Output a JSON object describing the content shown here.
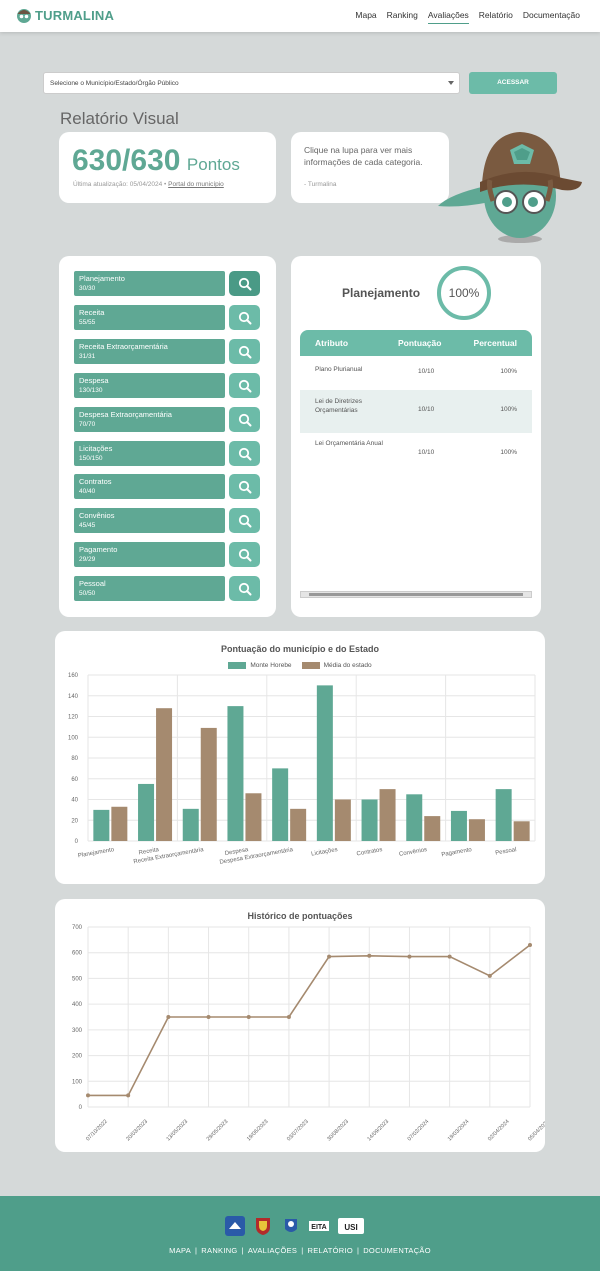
{
  "brand": {
    "name": "TURMALINA"
  },
  "nav": {
    "items": [
      "Mapa",
      "Ranking",
      "Avaliações",
      "Relatório",
      "Documentação"
    ],
    "active": "Avaliações"
  },
  "search": {
    "placeholder": "Selecione o Município/Estado/Órgão Público",
    "button": "ACESSAR"
  },
  "page": {
    "title": "Relatório Visual"
  },
  "score": {
    "value": "630/630",
    "unit": "Pontos",
    "last_update": "Última atualização: 05/04/2024 •",
    "portal_link": "Portal do município"
  },
  "tip": {
    "text": "Clique na lupa para ver mais informações de cada categoria.",
    "signature": "- Turmalina"
  },
  "categories": [
    {
      "name": "Planejamento",
      "score": "30/30"
    },
    {
      "name": "Receita",
      "score": "55/55"
    },
    {
      "name": "Receita Extraorçamentária",
      "score": "31/31"
    },
    {
      "name": "Despesa",
      "score": "130/130"
    },
    {
      "name": "Despesa Extraorçamentária",
      "score": "70/70"
    },
    {
      "name": "Licitações",
      "score": "150/150"
    },
    {
      "name": "Contratos",
      "score": "40/40"
    },
    {
      "name": "Convênios",
      "score": "45/45"
    },
    {
      "name": "Pagamento",
      "score": "29/29"
    },
    {
      "name": "Pessoal",
      "score": "50/50"
    }
  ],
  "detail": {
    "title": "Planejamento",
    "percent_label": "100%",
    "percent_value": 1.0,
    "colors": {
      "accent": "#6cbba8",
      "accent_dark": "#5fa894",
      "secondary": "#a58a6f"
    },
    "columns": [
      "Atributo",
      "Pontuação",
      "Percentual"
    ],
    "rows": [
      {
        "attr": "Plano Plurianual",
        "pont": "10/10",
        "perc": "100%"
      },
      {
        "attr": "Lei de Diretrizes Orçamentárias",
        "pont": "10/10",
        "perc": "100%"
      },
      {
        "attr": "Lei Orçamentária Anual",
        "pont": "10/10",
        "perc": "100%"
      }
    ]
  },
  "chart_data": [
    {
      "type": "bar",
      "title": "Pontuação do município e do Estado",
      "categories": [
        "Planejamento",
        "Receita",
        "Receita Extraorçamentária",
        "Despesa",
        "Despesa Extraorçamentária",
        "Licitações",
        "Contratos",
        "Convênios",
        "Pagamento",
        "Pessoal"
      ],
      "series": [
        {
          "name": "Monte Horebe",
          "color": "#5fa894",
          "values": [
            30,
            55,
            31,
            130,
            70,
            150,
            40,
            45,
            29,
            50
          ]
        },
        {
          "name": "Média do estado",
          "color": "#a58a6f",
          "values": [
            33,
            128,
            109,
            46,
            31,
            40,
            50,
            24,
            21,
            19
          ]
        }
      ],
      "ylim": [
        0,
        160
      ],
      "yticks": [
        0,
        20,
        40,
        60,
        80,
        100,
        120,
        140,
        160
      ],
      "grid": true,
      "legend": "top-center"
    },
    {
      "type": "line",
      "title": "Histórico de pontuações",
      "x": [
        "07/10/2022",
        "20/03/2023",
        "13/05/2023",
        "29/05/2023",
        "19/06/2023",
        "03/07/2023",
        "30/08/2023",
        "14/09/2023",
        "07/02/2024",
        "19/03/2024",
        "02/04/2024",
        "05/04/2024"
      ],
      "series": [
        {
          "color": "#a58a6f",
          "values": [
            45,
            45,
            350,
            350,
            350,
            350,
            585,
            588,
            585,
            585,
            510,
            630
          ]
        }
      ],
      "ylim": [
        0,
        700
      ],
      "yticks": [
        0,
        100,
        200,
        300,
        400,
        500,
        600,
        700
      ],
      "grid": true
    }
  ],
  "footer": {
    "partners": [
      "seed-logo",
      "uepb-shield-logo",
      "ufpb-logo",
      "eita-logo",
      "usi-logo"
    ],
    "links": [
      "MAPA",
      "RANKING",
      "AVALIAÇÕES",
      "RELATÓRIO",
      "DOCUMENTAÇÃO"
    ]
  }
}
